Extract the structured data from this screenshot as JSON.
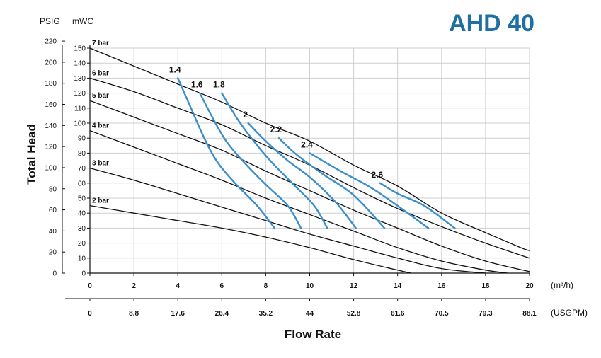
{
  "chart_data": {
    "type": "line",
    "title": "AHD 40",
    "title_color": "#1f6fa3",
    "xlabel": "Flow Rate",
    "ylabel": "Total Head",
    "x_unit_primary": "(m³/h)",
    "x_unit_secondary": "(USGPM)",
    "y_unit_left": "PSIG",
    "y_unit_right": "mWC",
    "xlim": [
      0,
      20
    ],
    "ylim": [
      0,
      150
    ],
    "x_ticks": [
      0,
      2,
      4,
      6,
      8,
      10,
      12,
      14,
      16,
      18,
      20
    ],
    "x_ticks_secondary": [
      "0",
      "8.8",
      "17.6",
      "26.4",
      "35.2",
      "44",
      "52.8",
      "61.6",
      "70.5",
      "79.3",
      "88.1"
    ],
    "y_ticks_mwc": [
      0,
      10,
      20,
      30,
      40,
      50,
      60,
      70,
      80,
      90,
      100,
      110,
      120,
      130,
      140,
      150
    ],
    "y_ticks_psig": [
      0,
      20,
      40,
      60,
      80,
      100,
      120,
      140,
      160,
      180,
      200,
      220
    ],
    "grid": true,
    "legend": "none",
    "colors": {
      "pressure_curves": "#111111",
      "air_curves": "#3a8ec9",
      "grid": "#cfcfcf"
    },
    "series": [
      {
        "name": "7 bar",
        "group": "pressure",
        "points": [
          [
            0,
            150
          ],
          [
            2,
            138
          ],
          [
            4,
            126
          ],
          [
            6,
            114
          ],
          [
            8,
            100
          ],
          [
            10,
            88
          ],
          [
            12,
            72
          ],
          [
            14,
            58
          ],
          [
            16,
            40
          ],
          [
            18,
            27
          ],
          [
            19.6,
            17
          ],
          [
            20,
            15
          ]
        ]
      },
      {
        "name": "6 bar",
        "group": "pressure",
        "points": [
          [
            0,
            130
          ],
          [
            2,
            121
          ],
          [
            4,
            110
          ],
          [
            6,
            99
          ],
          [
            8,
            85
          ],
          [
            10,
            72
          ],
          [
            12,
            57
          ],
          [
            14,
            43
          ],
          [
            16,
            31
          ],
          [
            18,
            20
          ],
          [
            20,
            10
          ]
        ]
      },
      {
        "name": "5 bar",
        "group": "pressure",
        "points": [
          [
            0,
            115
          ],
          [
            2,
            104
          ],
          [
            4,
            93
          ],
          [
            6,
            82
          ],
          [
            8,
            68
          ],
          [
            10,
            55
          ],
          [
            12,
            42
          ],
          [
            14,
            30
          ],
          [
            16,
            18
          ],
          [
            18,
            8
          ],
          [
            20,
            1
          ]
        ]
      },
      {
        "name": "4 bar",
        "group": "pressure",
        "points": [
          [
            0,
            95
          ],
          [
            2,
            84
          ],
          [
            4,
            73
          ],
          [
            6,
            62
          ],
          [
            8,
            50
          ],
          [
            10,
            39
          ],
          [
            12,
            28
          ],
          [
            14,
            17
          ],
          [
            16,
            8
          ],
          [
            18,
            2
          ],
          [
            19,
            0
          ]
        ]
      },
      {
        "name": "3 bar",
        "group": "pressure",
        "points": [
          [
            0,
            70
          ],
          [
            2,
            62
          ],
          [
            4,
            53
          ],
          [
            6,
            44
          ],
          [
            8,
            35
          ],
          [
            10,
            26
          ],
          [
            12,
            18
          ],
          [
            14,
            10
          ],
          [
            16,
            3
          ],
          [
            18,
            0
          ]
        ]
      },
      {
        "name": "2 bar",
        "group": "pressure",
        "points": [
          [
            0,
            45
          ],
          [
            2,
            40
          ],
          [
            4,
            35
          ],
          [
            6,
            30
          ],
          [
            8,
            24
          ],
          [
            10,
            17
          ],
          [
            12,
            9
          ],
          [
            14,
            2
          ],
          [
            14.6,
            0
          ]
        ]
      },
      {
        "name": "1.4",
        "group": "air",
        "points": [
          [
            4,
            130
          ],
          [
            4.6,
            110
          ],
          [
            5.2,
            90
          ],
          [
            5.8,
            74
          ],
          [
            6.6,
            60
          ],
          [
            7.6,
            45
          ],
          [
            8.4,
            30
          ]
        ]
      },
      {
        "name": "1.6",
        "group": "air",
        "points": [
          [
            5,
            120
          ],
          [
            5.6,
            103
          ],
          [
            6.2,
            88
          ],
          [
            7,
            74
          ],
          [
            8,
            59
          ],
          [
            9,
            45
          ],
          [
            9.6,
            30
          ]
        ]
      },
      {
        "name": "1.8",
        "group": "air",
        "points": [
          [
            6,
            120
          ],
          [
            6.7,
            103
          ],
          [
            7.4,
            89
          ],
          [
            8.2,
            75
          ],
          [
            9.2,
            60
          ],
          [
            10.2,
            45
          ],
          [
            10.8,
            30
          ]
        ]
      },
      {
        "name": "2",
        "group": "air",
        "points": [
          [
            7.2,
            100
          ],
          [
            8,
            88
          ],
          [
            9,
            75
          ],
          [
            10,
            64
          ],
          [
            11.2,
            47
          ],
          [
            12.1,
            30
          ]
        ]
      },
      {
        "name": "2.2",
        "group": "air",
        "points": [
          [
            8.6,
            90
          ],
          [
            9.4,
            79
          ],
          [
            10.6,
            66
          ],
          [
            12,
            52
          ],
          [
            13.4,
            30
          ]
        ]
      },
      {
        "name": "2.4",
        "group": "air",
        "points": [
          [
            10,
            80
          ],
          [
            11.4,
            68
          ],
          [
            13,
            55
          ],
          [
            15.4,
            30
          ]
        ]
      },
      {
        "name": "2.6",
        "group": "air",
        "points": [
          [
            13.2,
            60
          ],
          [
            14,
            53
          ],
          [
            15.2,
            45
          ],
          [
            16.6,
            30
          ]
        ]
      }
    ]
  }
}
